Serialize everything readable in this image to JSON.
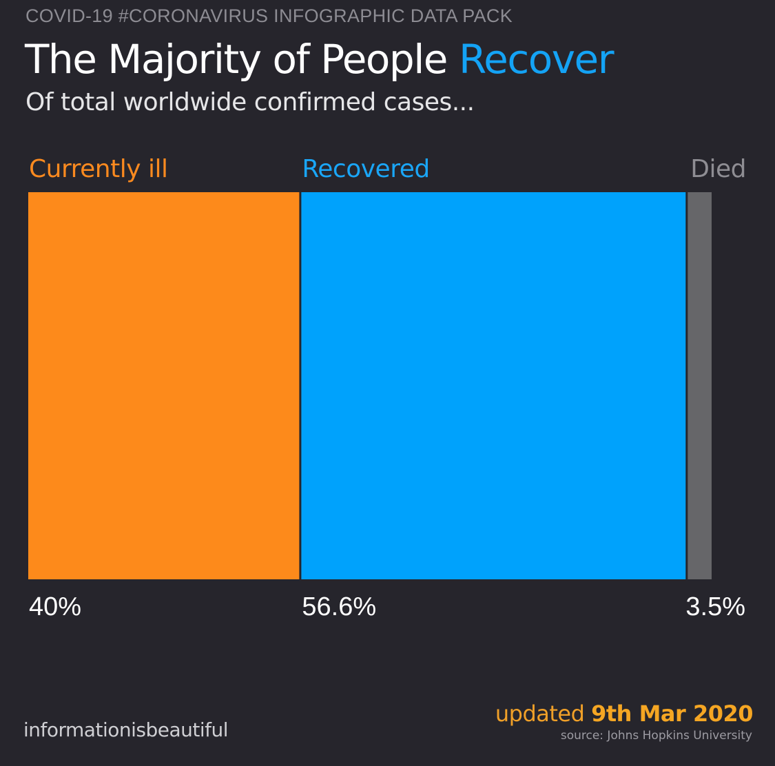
{
  "header": {
    "supertitle": "COVID-19 #CORONAVIRUS INFOGRAPHIC DATA PACK",
    "title_main": "The Majority of People ",
    "title_accent": "Recover",
    "subtitle": "Of total worldwide confirmed cases..."
  },
  "chart_data": {
    "type": "bar",
    "orientation": "stacked-horizontal",
    "unit": "%",
    "categories": [
      "Currently ill",
      "Recovered",
      "Died"
    ],
    "values": [
      40,
      56.6,
      3.5
    ],
    "value_labels": [
      "40%",
      "56.6%",
      "3.5%"
    ],
    "colors": [
      "#fd8a1b",
      "#00a2fc",
      "#666669"
    ],
    "label_colors": [
      "#fb8a1f",
      "#1aa6f7",
      "#8e8d93"
    ],
    "title": "The Majority of People Recover",
    "subtitle": "Of total worldwide confirmed cases...",
    "legend": "none",
    "grid": false
  },
  "footer": {
    "brand": "informationisbeautiful",
    "updated_prefix": "updated ",
    "updated_date": "9th Mar 2020",
    "source": "source: Johns Hopkins University"
  },
  "colors": {
    "background": "#26252c",
    "accent": "#14a3f5",
    "updated": "#f5a623"
  }
}
